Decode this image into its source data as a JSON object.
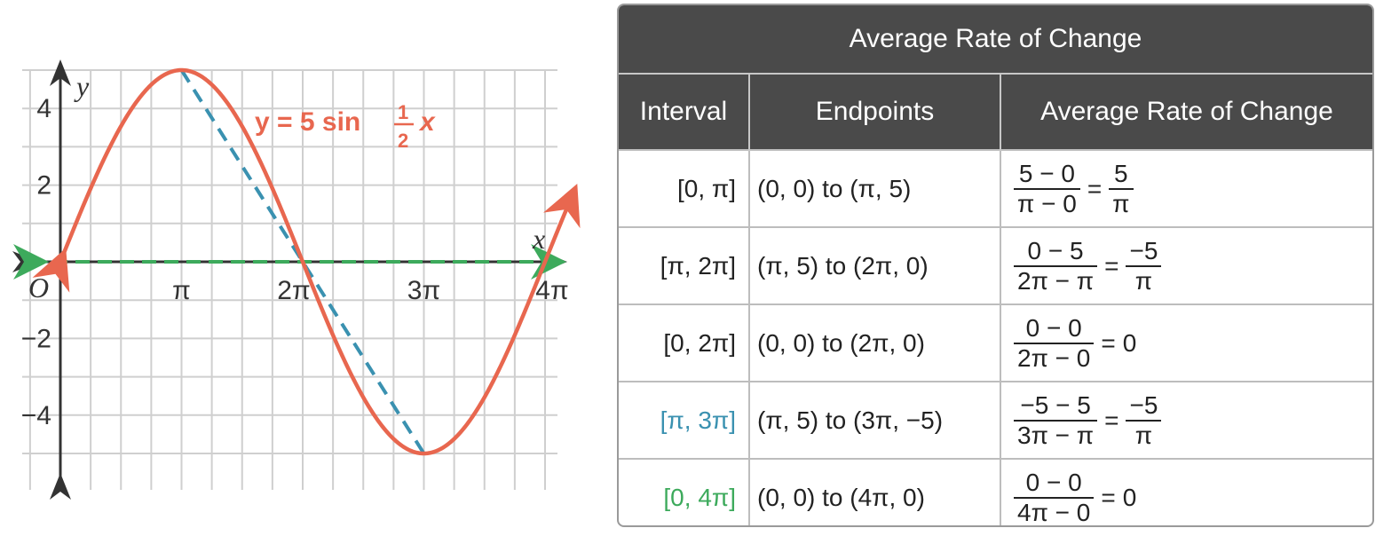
{
  "chart_data": {
    "type": "line",
    "equation": "y = 5 sin ½x",
    "equation_parts": {
      "lhs": "y = 5 sin",
      "num": "1",
      "den": "2",
      "var": "x"
    },
    "xlabel": "x",
    "ylabel": "y",
    "origin_label": "O",
    "x_ticks": [
      {
        "value": 3.14159,
        "label": "π"
      },
      {
        "value": 6.28319,
        "label": "2π"
      },
      {
        "value": 9.42478,
        "label": "3π"
      },
      {
        "value": 12.56637,
        "label": "4π"
      }
    ],
    "y_ticks": [
      {
        "value": 4,
        "label": "4"
      },
      {
        "value": 2,
        "label": "2"
      },
      {
        "value": -2,
        "label": "−2"
      },
      {
        "value": -4,
        "label": "−4"
      }
    ],
    "xlim": [
      0,
      13.2
    ],
    "ylim": [
      -5.8,
      5
    ],
    "grid": true,
    "series": [
      {
        "name": "y = 5 sin ½x",
        "function": "5*sin(x/2)",
        "x_range": [
          0,
          13.2
        ],
        "color": "#e8674f"
      }
    ],
    "secants": [
      {
        "from": [
          3.14159,
          5
        ],
        "to": [
          9.42478,
          -5
        ],
        "color": "#3a91b0",
        "style": "dashed"
      },
      {
        "from": [
          0,
          0
        ],
        "to": [
          12.56637,
          0
        ],
        "color": "#3daa5c",
        "style": "dashed"
      }
    ]
  },
  "table": {
    "title": "Average Rate of Change",
    "headers": [
      "Interval",
      "Endpoints",
      "Average Rate of Change"
    ],
    "rows": [
      {
        "interval": "[0, π]",
        "interval_color": "#222222",
        "endpoints": "(0, 0) to (π, 5)",
        "num": "5 − 0",
        "den": "π − 0",
        "eq": "=",
        "res_num": "5",
        "res_den": "π",
        "res": ""
      },
      {
        "interval": "[π, 2π]",
        "interval_color": "#222222",
        "endpoints": "(π, 5) to (2π, 0)",
        "num": "0 − 5",
        "den": "2π − π",
        "eq": "=",
        "res_num": "−5",
        "res_den": "π",
        "res": ""
      },
      {
        "interval": "[0, 2π]",
        "interval_color": "#222222",
        "endpoints": "(0, 0) to (2π, 0)",
        "num": "0 − 0",
        "den": "2π − 0",
        "eq": "=",
        "res_num": "",
        "res_den": "",
        "res": "0"
      },
      {
        "interval": "[π, 3π]",
        "interval_color": "#3a91b0",
        "endpoints": "(π, 5) to (3π, −5)",
        "num": "−5 − 5",
        "den": "3π − π",
        "eq": "=",
        "res_num": "−5",
        "res_den": "π",
        "res": ""
      },
      {
        "interval": "[0, 4π]",
        "interval_color": "#3daa5c",
        "endpoints": "(0, 0) to (4π, 0)",
        "num": "0 − 0",
        "den": "4π − 0",
        "eq": "=",
        "res_num": "",
        "res_den": "",
        "res": "0"
      }
    ]
  }
}
